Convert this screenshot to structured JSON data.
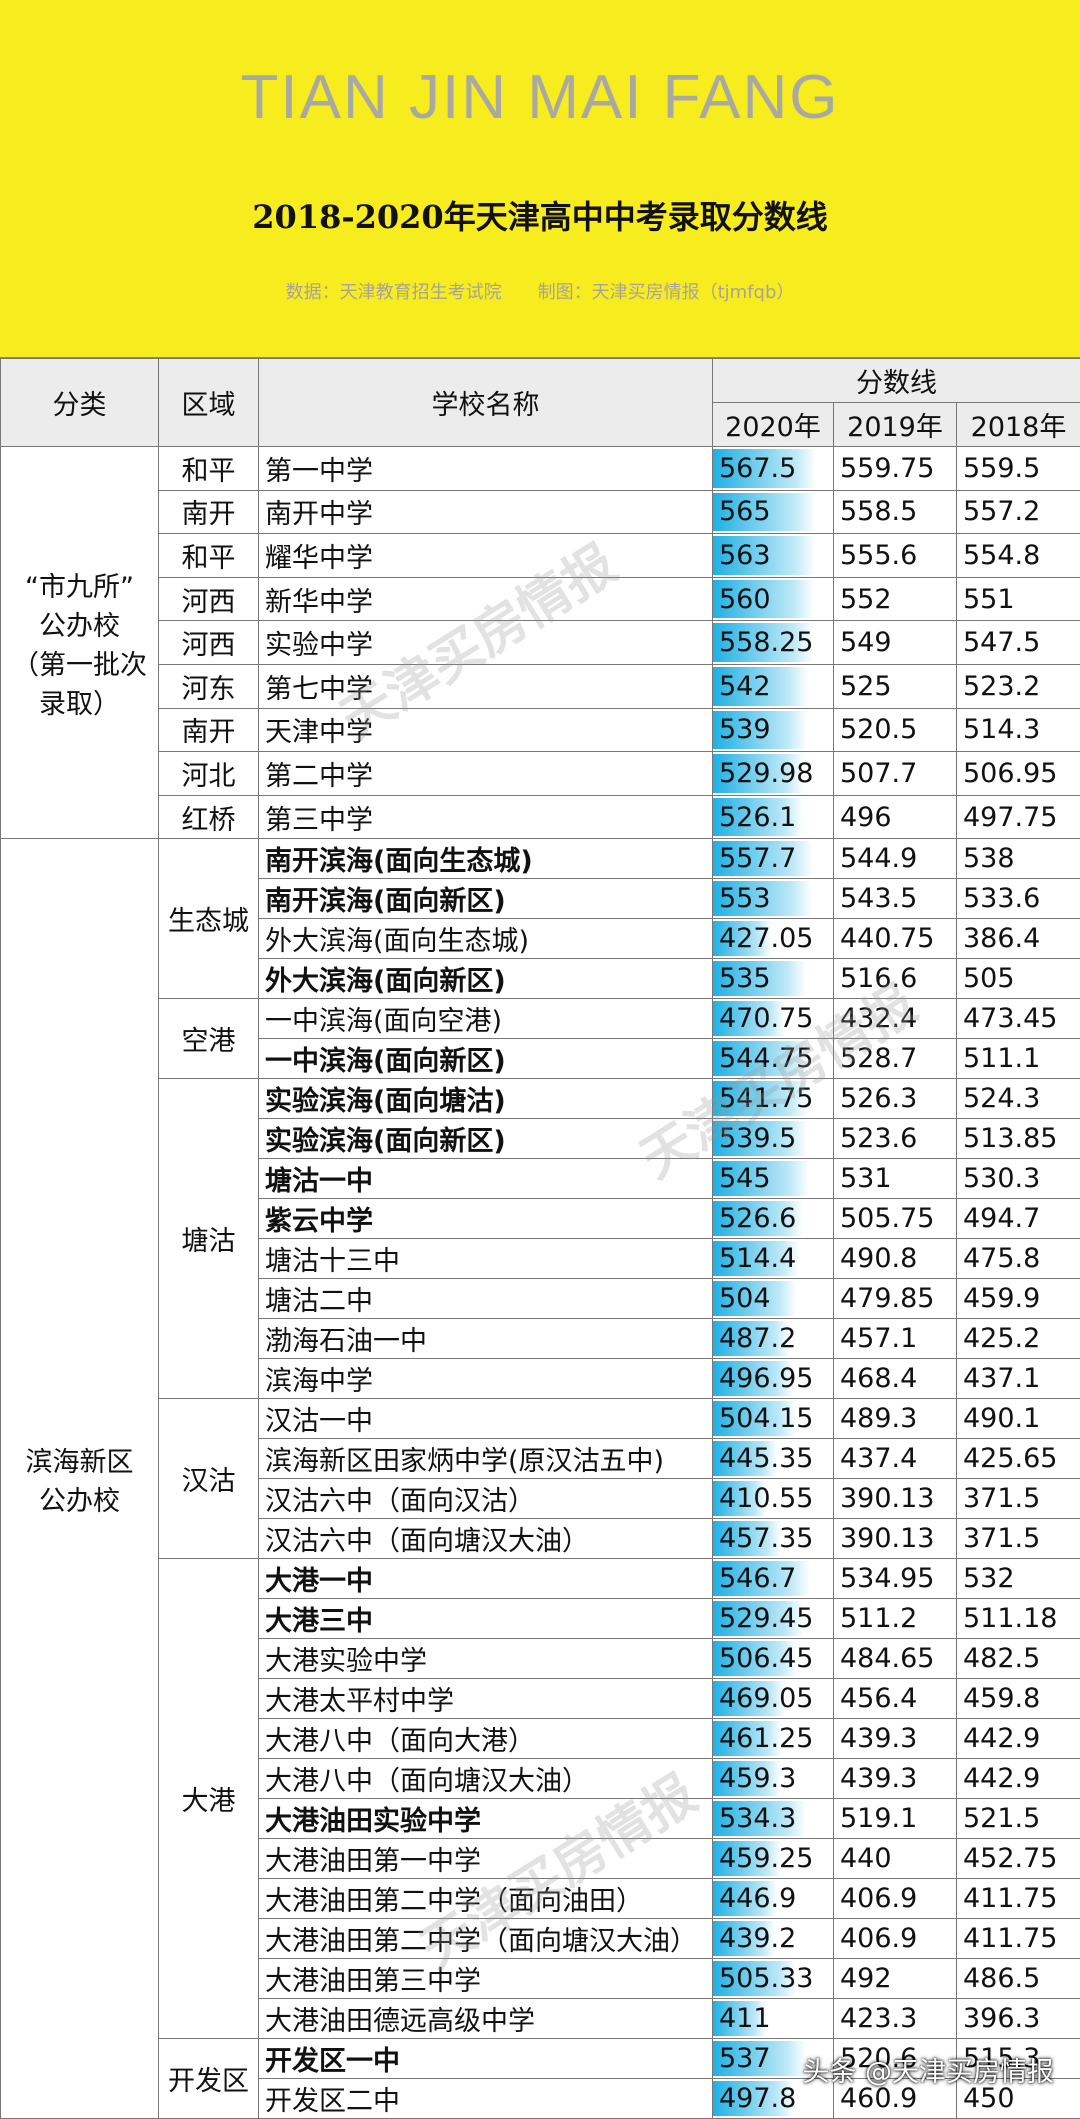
{
  "header": {
    "title_en": "TIAN JIN MAI FANG",
    "title": "2018-2020年天津高中中考录取分数线",
    "source": "数据：天津教育招生考试院　　制图：天津买房情报（tjmfqb）"
  },
  "table": {
    "headers": {
      "category": "分类",
      "district": "区域",
      "school": "学校名称",
      "scores": "分数线",
      "years": [
        "2020年",
        "2019年",
        "2018年"
      ]
    },
    "groups": [
      {
        "category": [
          "“市九所”",
          "公办校",
          "（第一批次",
          "录取）"
        ],
        "districts": [
          {
            "name": "和平",
            "rows": [
              {
                "school": "第一中学",
                "scores": [
                  567.5,
                  559.75,
                  559.5
                ]
              }
            ]
          },
          {
            "name": "南开",
            "rows": [
              {
                "school": "南开中学",
                "scores": [
                  565,
                  558.5,
                  557.2
                ]
              }
            ]
          },
          {
            "name": "和平",
            "rows": [
              {
                "school": "耀华中学",
                "scores": [
                  563,
                  555.6,
                  554.8
                ]
              }
            ]
          },
          {
            "name": "河西",
            "rows": [
              {
                "school": "新华中学",
                "scores": [
                  560,
                  552,
                  551
                ]
              }
            ]
          },
          {
            "name": "河西",
            "rows": [
              {
                "school": "实验中学",
                "scores": [
                  558.25,
                  549,
                  547.5
                ]
              }
            ]
          },
          {
            "name": "河东",
            "rows": [
              {
                "school": "第七中学",
                "scores": [
                  542,
                  525,
                  523.2
                ]
              }
            ]
          },
          {
            "name": "南开",
            "rows": [
              {
                "school": "天津中学",
                "scores": [
                  539,
                  520.5,
                  514.3
                ]
              }
            ]
          },
          {
            "name": "河北",
            "rows": [
              {
                "school": "第二中学",
                "scores": [
                  529.98,
                  507.7,
                  506.95
                ]
              }
            ]
          },
          {
            "name": "红桥",
            "rows": [
              {
                "school": "第三中学",
                "scores": [
                  526.1,
                  496,
                  497.75
                ]
              }
            ]
          }
        ]
      },
      {
        "category": [
          "滨海新区",
          "公办校"
        ],
        "districts": [
          {
            "name": "生态城",
            "rows": [
              {
                "school": "南开滨海(面向生态城)",
                "scores": [
                  557.7,
                  544.9,
                  538
                ],
                "bold": true
              },
              {
                "school": "南开滨海(面向新区)",
                "scores": [
                  553,
                  543.5,
                  533.6
                ],
                "bold": true
              },
              {
                "school": "外大滨海(面向生态城)",
                "scores": [
                  427.05,
                  440.75,
                  386.4
                ]
              },
              {
                "school": "外大滨海(面向新区)",
                "scores": [
                  535,
                  516.6,
                  505
                ],
                "bold": true
              }
            ]
          },
          {
            "name": "空港",
            "rows": [
              {
                "school": "一中滨海(面向空港)",
                "scores": [
                  470.75,
                  432.4,
                  473.45
                ]
              },
              {
                "school": "一中滨海(面向新区)",
                "scores": [
                  544.75,
                  528.7,
                  511.1
                ],
                "bold": true
              }
            ]
          },
          {
            "name": "塘沽",
            "rows": [
              {
                "school": "实验滨海(面向塘沽)",
                "scores": [
                  541.75,
                  526.3,
                  524.3
                ],
                "bold": true
              },
              {
                "school": "实验滨海(面向新区)",
                "scores": [
                  539.5,
                  523.6,
                  513.85
                ],
                "bold": true
              },
              {
                "school": "塘沽一中",
                "scores": [
                  545,
                  531,
                  530.3
                ],
                "bold": true
              },
              {
                "school": "紫云中学",
                "scores": [
                  526.6,
                  505.75,
                  494.7
                ],
                "bold": true
              },
              {
                "school": "塘沽十三中",
                "scores": [
                  514.4,
                  490.8,
                  475.8
                ]
              },
              {
                "school": "塘沽二中",
                "scores": [
                  504,
                  479.85,
                  459.9
                ]
              },
              {
                "school": "渤海石油一中",
                "scores": [
                  487.2,
                  457.1,
                  425.2
                ]
              },
              {
                "school": "滨海中学",
                "scores": [
                  496.95,
                  468.4,
                  437.1
                ]
              }
            ]
          },
          {
            "name": "汉沽",
            "rows": [
              {
                "school": "汉沽一中",
                "scores": [
                  504.15,
                  489.3,
                  490.1
                ]
              },
              {
                "school": "滨海新区田家炳中学(原汉沽五中)",
                "scores": [
                  445.35,
                  437.4,
                  425.65
                ]
              },
              {
                "school": "汉沽六中（面向汉沽）",
                "scores": [
                  410.55,
                  390.13,
                  371.5
                ]
              },
              {
                "school": "汉沽六中（面向塘汉大油）",
                "scores": [
                  457.35,
                  390.13,
                  371.5
                ]
              }
            ]
          },
          {
            "name": "大港",
            "rows": [
              {
                "school": "大港一中",
                "scores": [
                  546.7,
                  534.95,
                  532
                ],
                "bold": true
              },
              {
                "school": "大港三中",
                "scores": [
                  529.45,
                  511.2,
                  511.18
                ],
                "bold": true
              },
              {
                "school": "大港实验中学",
                "scores": [
                  506.45,
                  484.65,
                  482.5
                ]
              },
              {
                "school": "大港太平村中学",
                "scores": [
                  469.05,
                  456.4,
                  459.8
                ]
              },
              {
                "school": "大港八中（面向大港）",
                "scores": [
                  461.25,
                  439.3,
                  442.9
                ]
              },
              {
                "school": "大港八中（面向塘汉大油）",
                "scores": [
                  459.3,
                  439.3,
                  442.9
                ]
              },
              {
                "school": "大港油田实验中学",
                "scores": [
                  534.3,
                  519.1,
                  521.5
                ],
                "bold": true
              },
              {
                "school": "大港油田第一中学",
                "scores": [
                  459.25,
                  440,
                  452.75
                ]
              },
              {
                "school": "大港油田第二中学（面向油田）",
                "scores": [
                  446.9,
                  406.9,
                  411.75
                ]
              },
              {
                "school": "大港油田第二中学（面向塘汉大油）",
                "scores": [
                  439.2,
                  406.9,
                  411.75
                ]
              },
              {
                "school": "大港油田第三中学",
                "scores": [
                  505.33,
                  492,
                  486.5
                ]
              },
              {
                "school": "大港油田德远高级中学",
                "scores": [
                  411,
                  423.3,
                  396.3
                ]
              }
            ]
          },
          {
            "name": "开发区",
            "rows": [
              {
                "school": "开发区一中",
                "scores": [
                  537,
                  520.6,
                  515.3
                ],
                "bold": true
              },
              {
                "school": "开发区二中",
                "scores": [
                  497.8,
                  460.9,
                  450
                ]
              }
            ]
          }
        ]
      }
    ]
  },
  "watermark": "天津买房情报",
  "footer": "头条 @天津买房情报"
}
